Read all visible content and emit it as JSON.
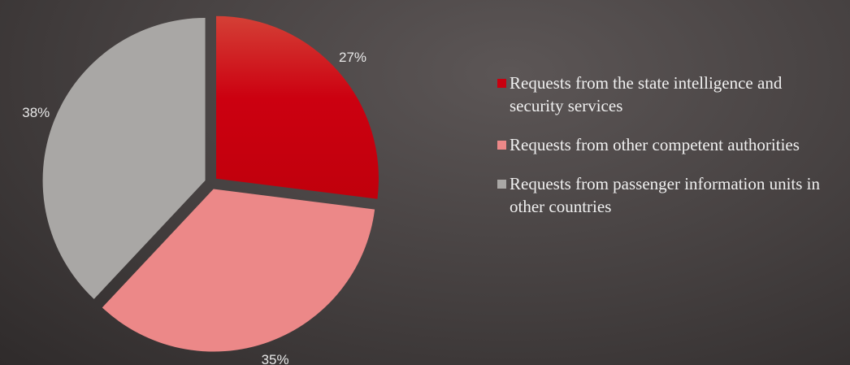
{
  "chart_data": {
    "type": "pie",
    "categories": [
      "Requests from the state intelligence and security services",
      "Requests from other competent authorities",
      "Requests from passenger information units in other countries"
    ],
    "values": [
      27,
      35,
      38
    ],
    "value_labels": [
      "27%",
      "35%",
      "38%"
    ],
    "colors": [
      "#c8000f",
      "#ec8888",
      "#a9a7a5"
    ],
    "legend": "right"
  }
}
